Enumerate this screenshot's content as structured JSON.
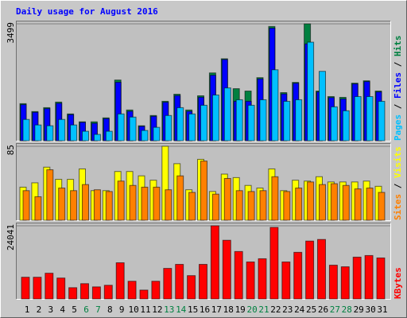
{
  "chart_data": [
    {
      "type": "bar",
      "title": "Daily usage for August 2016",
      "series": [
        {
          "name": "Hits",
          "color": "#008040",
          "values": [
            1110,
            873,
            990,
            1157,
            802,
            566,
            566,
            684,
            1817,
            920,
            448,
            755,
            1180,
            1392,
            920,
            1345,
            2030,
            2454,
            1558,
            1487,
            1888,
            3420,
            1440,
            1746,
            3499,
            1487,
            1322,
            1298,
            1723,
            1794,
            1487
          ]
        },
        {
          "name": "Files",
          "color": "#0000ff",
          "values": [
            1080,
            850,
            960,
            1120,
            780,
            550,
            520,
            660,
            1750,
            880,
            430,
            730,
            1150,
            1350,
            880,
            1300,
            1960,
            2430,
            1180,
            1180,
            1850,
            3370,
            1400,
            1720,
            2900,
            1460,
            1290,
            1250,
            1700,
            1770,
            1460
          ]
        },
        {
          "name": "Pages",
          "color": "#00c0ff",
          "values": [
            637,
            472,
            448,
            637,
            472,
            283,
            189,
            283,
            802,
            708,
            307,
            401,
            755,
            990,
            802,
            1062,
            1369,
            1581,
            1227,
            1062,
            1227,
            2124,
            1180,
            1227,
            2950,
            2077,
            1015,
            897,
            1322,
            1322,
            1180
          ]
        }
      ],
      "ylim": [
        0,
        3499
      ],
      "yticks": [
        3499
      ],
      "legend_separator": " / "
    },
    {
      "type": "bar",
      "series": [
        {
          "name": "Visits",
          "color": "#ffff00",
          "values": [
            38,
            43,
            61,
            47,
            47,
            59,
            34,
            34,
            56,
            56,
            51,
            46,
            85,
            65,
            35,
            70,
            33,
            53,
            49,
            40,
            37,
            59,
            34,
            46,
            45,
            50,
            44,
            44,
            44,
            45,
            39
          ]
        },
        {
          "name": "Sites",
          "color": "#ff8000",
          "values": [
            34,
            27,
            58,
            37,
            34,
            41,
            35,
            33,
            45,
            40,
            38,
            38,
            35,
            51,
            32,
            68,
            30,
            48,
            34,
            33,
            34,
            50,
            33,
            37,
            44,
            41,
            42,
            40,
            36,
            37,
            32
          ]
        }
      ],
      "ylim": [
        0,
        85
      ],
      "yticks": [
        85
      ],
      "legend_separator": " / "
    },
    {
      "type": "bar",
      "categories": [
        "1",
        "2",
        "3",
        "4",
        "5",
        "6",
        "7",
        "8",
        "9",
        "10",
        "11",
        "12",
        "13",
        "14",
        "15",
        "16",
        "17",
        "18",
        "19",
        "20",
        "21",
        "22",
        "23",
        "24",
        "25",
        "26",
        "27",
        "28",
        "29",
        "30",
        "31"
      ],
      "highlight_categories": [
        "6",
        "7",
        "13",
        "14",
        "20",
        "21",
        "27",
        "28"
      ],
      "highlight_color": "#008040",
      "series": [
        {
          "name": "KBytes",
          "color": "#ff0000",
          "values": [
            7133,
            7133,
            8454,
            6869,
            3699,
            5020,
            3963,
            4491,
            11888,
            5812,
            2906,
            5812,
            10039,
            11360,
            7661,
            11360,
            24041,
            19285,
            15587,
            12153,
            13209,
            23513,
            12153,
            15323,
            19021,
            19549,
            11096,
            10567,
            13738,
            14266,
            13473
          ]
        }
      ],
      "ylim": [
        0,
        24041
      ],
      "yticks": [
        24041
      ]
    }
  ]
}
